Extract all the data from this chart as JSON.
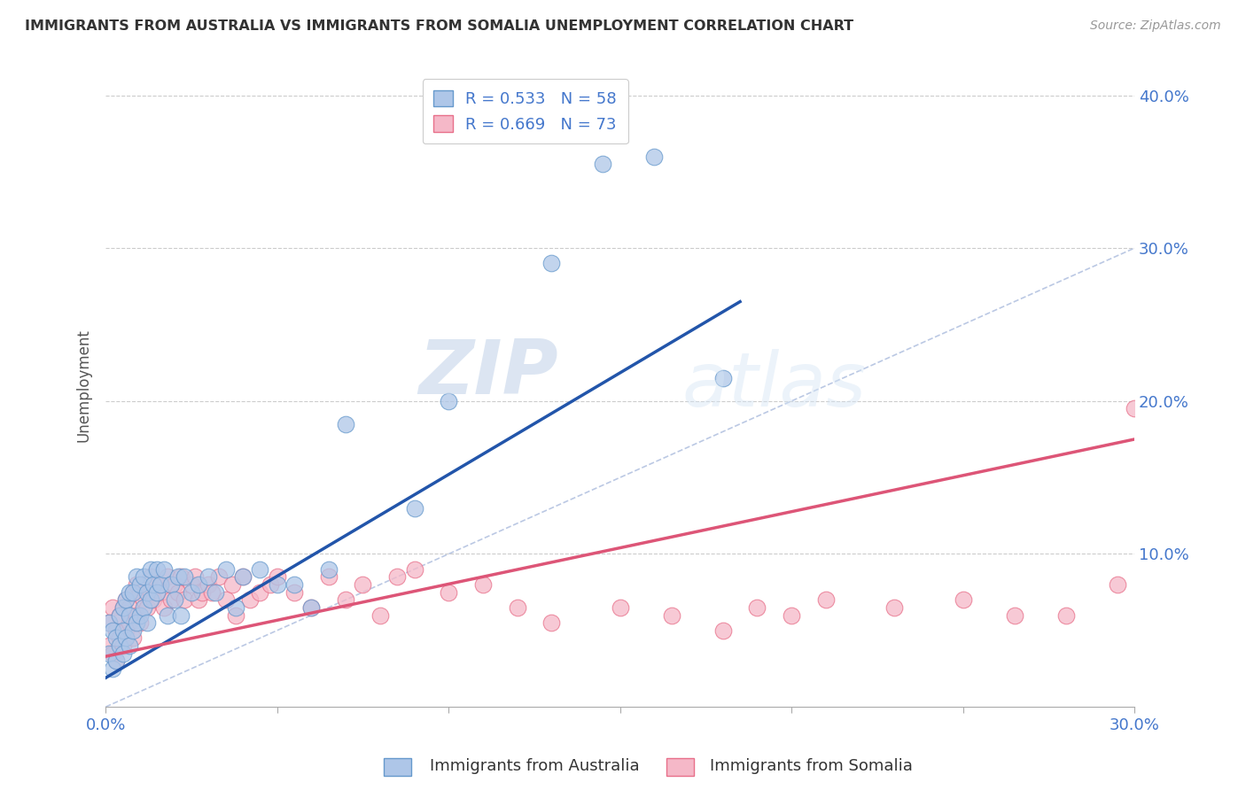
{
  "title": "IMMIGRANTS FROM AUSTRALIA VS IMMIGRANTS FROM SOMALIA UNEMPLOYMENT CORRELATION CHART",
  "source": "Source: ZipAtlas.com",
  "ylabel_label": "Unemployment",
  "x_min": 0.0,
  "x_max": 0.3,
  "y_min": 0.0,
  "y_max": 0.42,
  "x_ticks": [
    0.0,
    0.05,
    0.1,
    0.15,
    0.2,
    0.25,
    0.3
  ],
  "y_ticks": [
    0.0,
    0.1,
    0.2,
    0.3,
    0.4
  ],
  "y_tick_labels": [
    "",
    "10.0%",
    "20.0%",
    "30.0%",
    "40.0%"
  ],
  "australia_color": "#aec6e8",
  "australia_edge_color": "#6699cc",
  "somalia_color": "#f5b8c8",
  "somalia_edge_color": "#e8708a",
  "australia_line_color": "#2255aa",
  "somalia_line_color": "#dd5577",
  "diagonal_color": "#aabbdd",
  "text_color": "#4477cc",
  "title_color": "#333333",
  "legend_R_australia": "R = 0.533",
  "legend_N_australia": "N = 58",
  "legend_R_somalia": "R = 0.669",
  "legend_N_somalia": "N = 73",
  "watermark_zip": "ZIP",
  "watermark_atlas": "atlas",
  "aus_line_x0": 0.0,
  "aus_line_y0": 0.019,
  "aus_line_x1": 0.185,
  "aus_line_y1": 0.265,
  "som_line_x0": 0.0,
  "som_line_y0": 0.033,
  "som_line_x1": 0.3,
  "som_line_y1": 0.175,
  "australia_scatter_x": [
    0.001,
    0.001,
    0.002,
    0.002,
    0.003,
    0.003,
    0.004,
    0.004,
    0.005,
    0.005,
    0.005,
    0.006,
    0.006,
    0.007,
    0.007,
    0.007,
    0.008,
    0.008,
    0.009,
    0.009,
    0.01,
    0.01,
    0.011,
    0.011,
    0.012,
    0.012,
    0.013,
    0.013,
    0.014,
    0.015,
    0.015,
    0.016,
    0.017,
    0.018,
    0.019,
    0.02,
    0.021,
    0.022,
    0.023,
    0.025,
    0.027,
    0.03,
    0.032,
    0.035,
    0.038,
    0.04,
    0.045,
    0.05,
    0.055,
    0.06,
    0.065,
    0.07,
    0.09,
    0.1,
    0.13,
    0.145,
    0.16,
    0.18
  ],
  "australia_scatter_y": [
    0.035,
    0.055,
    0.025,
    0.05,
    0.03,
    0.045,
    0.04,
    0.06,
    0.035,
    0.05,
    0.065,
    0.045,
    0.07,
    0.04,
    0.06,
    0.075,
    0.05,
    0.075,
    0.055,
    0.085,
    0.06,
    0.08,
    0.065,
    0.085,
    0.055,
    0.075,
    0.07,
    0.09,
    0.08,
    0.075,
    0.09,
    0.08,
    0.09,
    0.06,
    0.08,
    0.07,
    0.085,
    0.06,
    0.085,
    0.075,
    0.08,
    0.085,
    0.075,
    0.09,
    0.065,
    0.085,
    0.09,
    0.08,
    0.08,
    0.065,
    0.09,
    0.185,
    0.13,
    0.2,
    0.29,
    0.355,
    0.36,
    0.215
  ],
  "somalia_scatter_x": [
    0.001,
    0.001,
    0.002,
    0.002,
    0.003,
    0.003,
    0.004,
    0.004,
    0.005,
    0.005,
    0.006,
    0.006,
    0.007,
    0.007,
    0.008,
    0.008,
    0.009,
    0.009,
    0.01,
    0.01,
    0.011,
    0.012,
    0.013,
    0.013,
    0.014,
    0.015,
    0.016,
    0.017,
    0.018,
    0.019,
    0.02,
    0.021,
    0.022,
    0.023,
    0.025,
    0.026,
    0.027,
    0.028,
    0.03,
    0.031,
    0.033,
    0.035,
    0.037,
    0.038,
    0.04,
    0.042,
    0.045,
    0.048,
    0.05,
    0.055,
    0.06,
    0.065,
    0.07,
    0.075,
    0.08,
    0.085,
    0.09,
    0.1,
    0.11,
    0.12,
    0.13,
    0.15,
    0.165,
    0.18,
    0.19,
    0.2,
    0.21,
    0.23,
    0.25,
    0.265,
    0.28,
    0.295,
    0.3
  ],
  "somalia_scatter_y": [
    0.04,
    0.055,
    0.035,
    0.065,
    0.03,
    0.05,
    0.045,
    0.06,
    0.04,
    0.065,
    0.05,
    0.07,
    0.055,
    0.065,
    0.045,
    0.075,
    0.06,
    0.08,
    0.055,
    0.075,
    0.07,
    0.065,
    0.075,
    0.085,
    0.07,
    0.08,
    0.075,
    0.065,
    0.085,
    0.07,
    0.08,
    0.075,
    0.085,
    0.07,
    0.08,
    0.085,
    0.07,
    0.075,
    0.08,
    0.075,
    0.085,
    0.07,
    0.08,
    0.06,
    0.085,
    0.07,
    0.075,
    0.08,
    0.085,
    0.075,
    0.065,
    0.085,
    0.07,
    0.08,
    0.06,
    0.085,
    0.09,
    0.075,
    0.08,
    0.065,
    0.055,
    0.065,
    0.06,
    0.05,
    0.065,
    0.06,
    0.07,
    0.065,
    0.07,
    0.06,
    0.06,
    0.08,
    0.195
  ]
}
